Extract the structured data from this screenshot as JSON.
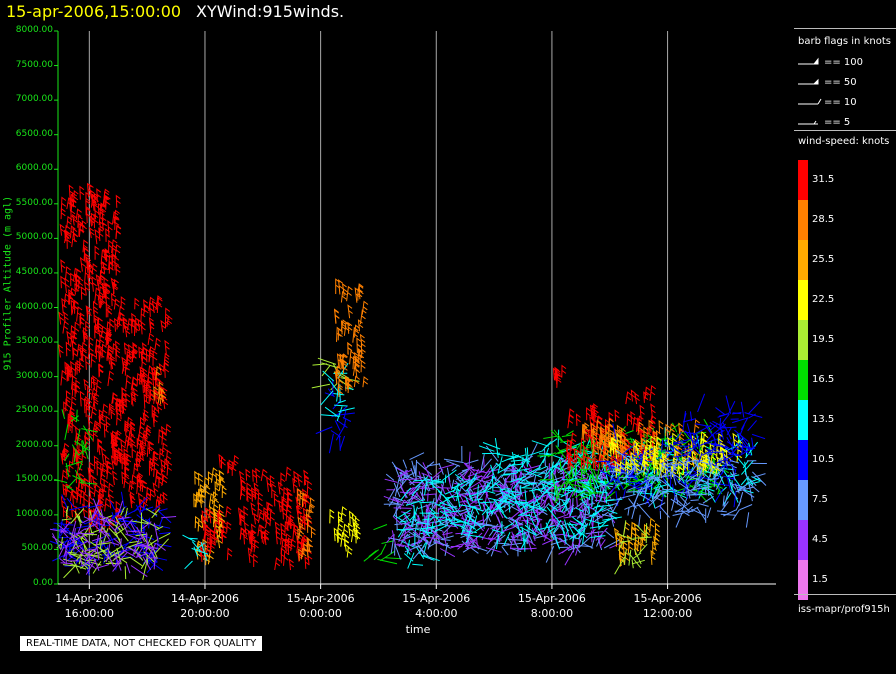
{
  "title": {
    "date": "15-apr-2006,15:00:00",
    "name": "XYWind:915winds."
  },
  "notice": "REAL-TIME DATA, NOT CHECKED FOR QUALITY",
  "source": "iss-mapr/prof915h",
  "colors": {
    "axis": "#19e619",
    "grid": "#aaaaaa",
    "background": "#000000"
  },
  "chart_data": {
    "type": "scatter",
    "title": "XYWind:915winds.",
    "xlabel": "time",
    "ylabel": "915 Profiler Altitude (m agl)",
    "ylim": [
      0,
      8000
    ],
    "yticks": [
      "0.00",
      "500.00",
      "1000.00",
      "1500.00",
      "2000.00",
      "2500.00",
      "3000.00",
      "3500.00",
      "4000.00",
      "4500.00",
      "5000.00",
      "5500.00",
      "6000.00",
      "6500.00",
      "7000.00",
      "7500.00",
      "8000.00"
    ],
    "xlim": [
      "2006-04-14T14:55",
      "2006-04-15T15:45"
    ],
    "xticks": [
      {
        "date": "14-Apr-2006",
        "time": "16:00:00",
        "hour": 16
      },
      {
        "date": "14-Apr-2006",
        "time": "20:00:00",
        "hour": 20
      },
      {
        "date": "15-Apr-2006",
        "time": "0:00:00",
        "hour": 24
      },
      {
        "date": "15-Apr-2006",
        "time": "4:00:00",
        "hour": 28
      },
      {
        "date": "15-Apr-2006",
        "time": "8:00:00",
        "hour": 32
      },
      {
        "date": "15-Apr-2006",
        "time": "12:00:00",
        "hour": 36
      }
    ],
    "grid": true,
    "legend": {
      "position": "right",
      "barb_title": "barb flags in knots",
      "barbs": [
        "== 100",
        "== 50",
        "== 10",
        "== 5"
      ],
      "speed_title": "wind-speed: knots",
      "speed_levels": [
        {
          "label": "31.5",
          "color": "#ff0000"
        },
        {
          "label": "28.5",
          "color": "#ff8000"
        },
        {
          "label": "25.5",
          "color": "#ffaa00"
        },
        {
          "label": "22.5",
          "color": "#ffff00"
        },
        {
          "label": "19.5",
          "color": "#aaee33"
        },
        {
          "label": "16.5",
          "color": "#00dd00"
        },
        {
          "label": "13.5",
          "color": "#00ffff"
        },
        {
          "label": "10.5",
          "color": "#0000ff"
        },
        {
          "label": "7.5",
          "color": "#6699ff"
        },
        {
          "label": "4.5",
          "color": "#9933ff"
        },
        {
          "label": "1.5",
          "color": "#ee77ee"
        }
      ]
    },
    "clusters": [
      {
        "t0": 15.0,
        "t1": 17.0,
        "z0": 700,
        "z1": 5600,
        "speed": 31.5
      },
      {
        "t0": 17.0,
        "t1": 18.7,
        "z0": 1000,
        "z1": 4000,
        "speed": 31.5
      },
      {
        "t0": 18.2,
        "t1": 18.6,
        "z0": 2600,
        "z1": 3000,
        "speed": 28.5
      },
      {
        "t0": 15.1,
        "t1": 15.8,
        "z0": 1400,
        "z1": 2400,
        "speed": 16.5
      },
      {
        "t0": 15.0,
        "t1": 18.5,
        "z0": 250,
        "z1": 1200,
        "speed": 10.5
      },
      {
        "t0": 15.0,
        "t1": 18.5,
        "z0": 250,
        "z1": 1000,
        "speed": 19.5
      },
      {
        "t0": 15.0,
        "t1": 18.5,
        "z0": 250,
        "z1": 1000,
        "speed": 4.5
      },
      {
        "t0": 19.6,
        "t1": 20.6,
        "z0": 250,
        "z1": 1500,
        "speed": 25.5
      },
      {
        "t0": 19.8,
        "t1": 20.8,
        "z0": 300,
        "z1": 1000,
        "speed": 31.5
      },
      {
        "t0": 19.5,
        "t1": 20.0,
        "z0": 250,
        "z1": 700,
        "speed": 13.5
      },
      {
        "t0": 20.5,
        "t1": 21.0,
        "z0": 1550,
        "z1": 1700,
        "speed": 31.5
      },
      {
        "t0": 21.2,
        "t1": 23.6,
        "z0": 200,
        "z1": 1500,
        "speed": 31.5
      },
      {
        "t0": 23.2,
        "t1": 23.7,
        "z0": 250,
        "z1": 1200,
        "speed": 28.5
      },
      {
        "t0": 24.2,
        "t1": 24.8,
        "z0": 2800,
        "z1": 3300,
        "speed": 19.5
      },
      {
        "t0": 24.2,
        "t1": 24.9,
        "z0": 2100,
        "z1": 2800,
        "speed": 10.5
      },
      {
        "t0": 24.4,
        "t1": 24.9,
        "z0": 2300,
        "z1": 3100,
        "speed": 13.5
      },
      {
        "t0": 24.5,
        "t1": 25.5,
        "z0": 2700,
        "z1": 4200,
        "speed": 28.5
      },
      {
        "t0": 24.3,
        "t1": 25.3,
        "z0": 350,
        "z1": 900,
        "speed": 22.5
      },
      {
        "t0": 25.8,
        "t1": 26.3,
        "z0": 300,
        "z1": 800,
        "speed": 16.5
      },
      {
        "t0": 26.8,
        "t1": 27.6,
        "z0": 250,
        "z1": 900,
        "speed": 13.5
      },
      {
        "t0": 26.5,
        "t1": 34.0,
        "z0": 500,
        "z1": 1800,
        "speed": 7.5
      },
      {
        "t0": 26.5,
        "t1": 34.0,
        "z0": 500,
        "z1": 1700,
        "speed": 4.5
      },
      {
        "t0": 27.0,
        "t1": 34.0,
        "z0": 700,
        "z1": 1500,
        "speed": 13.5
      },
      {
        "t0": 30.0,
        "t1": 39.0,
        "z0": 1300,
        "z1": 2000,
        "speed": 13.5
      },
      {
        "t0": 32.0,
        "t1": 38.0,
        "z0": 1300,
        "z1": 2200,
        "speed": 16.5
      },
      {
        "t0": 32.5,
        "t1": 35.5,
        "z0": 1600,
        "z1": 2400,
        "speed": 31.5
      },
      {
        "t0": 33.0,
        "t1": 37.0,
        "z0": 1700,
        "z1": 2200,
        "speed": 28.5
      },
      {
        "t0": 34.0,
        "t1": 38.5,
        "z0": 1300,
        "z1": 2100,
        "speed": 10.5
      },
      {
        "t0": 34.0,
        "t1": 38.5,
        "z0": 1500,
        "z1": 2000,
        "speed": 22.5
      },
      {
        "t0": 34.0,
        "t1": 39.0,
        "z0": 1000,
        "z1": 1800,
        "speed": 7.5
      },
      {
        "t0": 34.2,
        "t1": 35.6,
        "z0": 250,
        "z1": 800,
        "speed": 25.5
      },
      {
        "t0": 34.4,
        "t1": 35.4,
        "z0": 250,
        "z1": 700,
        "speed": 19.5
      },
      {
        "t0": 32.0,
        "t1": 32.5,
        "z0": 2800,
        "z1": 3000,
        "speed": 31.5
      },
      {
        "t0": 34.5,
        "t1": 35.5,
        "z0": 2600,
        "z1": 2700,
        "speed": 31.5
      },
      {
        "t0": 36.5,
        "t1": 39.0,
        "z0": 1800,
        "z1": 2500,
        "speed": 10.5
      }
    ]
  }
}
